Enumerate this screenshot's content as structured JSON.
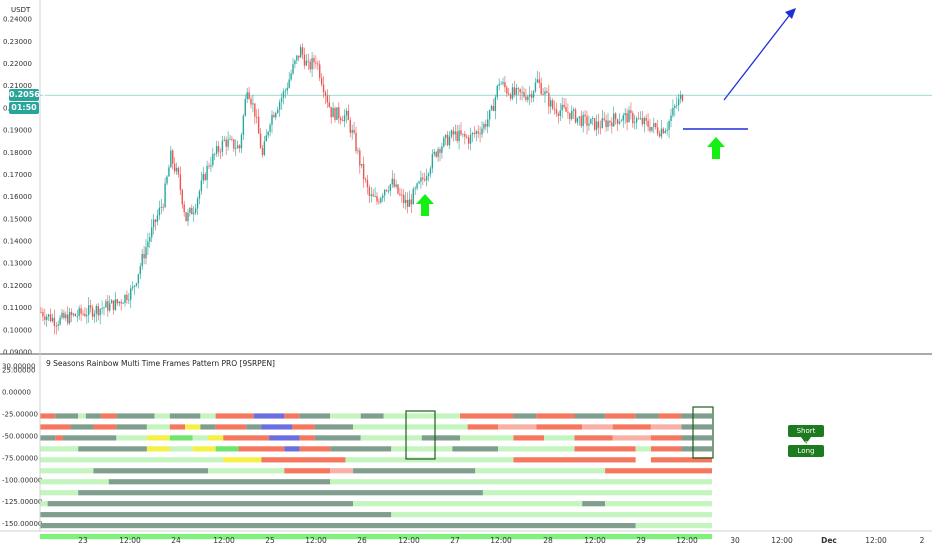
{
  "chart_data": [
    {
      "type": "candlestick",
      "unit_label": "USDT",
      "y_ticks": [
        "0.24000",
        "0.23000",
        "0.22000",
        "0.21000",
        "0.20000",
        "0.19000",
        "0.18000",
        "0.17000",
        "0.16000",
        "0.15000",
        "0.14000",
        "0.13000",
        "0.12000",
        "0.11000",
        "0.10000",
        "0.09000"
      ],
      "ylim": [
        0.09,
        0.245
      ],
      "last_price": "0.20565",
      "countdown": "01:50",
      "price_line": 0.2057,
      "horizontal_line": 0.1905,
      "close_path": [
        [
          0,
          0.108
        ],
        [
          4,
          0.104
        ],
        [
          8,
          0.106
        ],
        [
          12,
          0.108
        ],
        [
          16,
          0.11
        ],
        [
          20,
          0.112
        ],
        [
          24,
          0.118
        ],
        [
          28,
          0.14
        ],
        [
          32,
          0.158
        ],
        [
          34,
          0.178
        ],
        [
          36,
          0.168
        ],
        [
          38,
          0.15
        ],
        [
          40,
          0.155
        ],
        [
          44,
          0.175
        ],
        [
          48,
          0.185
        ],
        [
          52,
          0.182
        ],
        [
          54,
          0.21
        ],
        [
          56,
          0.198
        ],
        [
          58,
          0.178
        ],
        [
          60,
          0.195
        ],
        [
          64,
          0.208
        ],
        [
          66,
          0.218
        ],
        [
          68,
          0.226
        ],
        [
          70,
          0.218
        ],
        [
          72,
          0.222
        ],
        [
          74,
          0.21
        ],
        [
          76,
          0.198
        ],
        [
          80,
          0.196
        ],
        [
          82,
          0.186
        ],
        [
          84,
          0.172
        ],
        [
          86,
          0.16
        ],
        [
          88,
          0.158
        ],
        [
          90,
          0.164
        ],
        [
          92,
          0.166
        ],
        [
          94,
          0.16
        ],
        [
          96,
          0.156
        ],
        [
          98,
          0.162
        ],
        [
          100,
          0.168
        ],
        [
          104,
          0.182
        ],
        [
          108,
          0.188
        ],
        [
          112,
          0.186
        ],
        [
          116,
          0.192
        ],
        [
          118,
          0.198
        ],
        [
          120,
          0.212
        ],
        [
          122,
          0.208
        ],
        [
          124,
          0.206
        ],
        [
          128,
          0.206
        ],
        [
          130,
          0.212
        ],
        [
          132,
          0.206
        ],
        [
          134,
          0.2
        ],
        [
          138,
          0.198
        ],
        [
          142,
          0.194
        ],
        [
          146,
          0.192
        ],
        [
          150,
          0.195
        ],
        [
          154,
          0.196
        ],
        [
          158,
          0.193
        ],
        [
          162,
          0.19
        ],
        [
          164,
          0.192
        ],
        [
          166,
          0.2
        ],
        [
          168,
          0.2057
        ]
      ],
      "annotations": [
        "up-arrow",
        "up-arrow",
        "trend-arrow"
      ]
    },
    {
      "type": "heatmap",
      "title": "9 Seasons Rainbow Multi Time Frames Pattern PRO [9SRPEN]",
      "y_ticks": [
        "30.00000",
        "25.00000",
        "0.00000",
        "-25.00000",
        "-50.00000",
        "-75.00000",
        "-100.00000",
        "-125.00000",
        "-150.00000"
      ],
      "ylim": [
        -155,
        32
      ],
      "legend": [
        "Short Term",
        "Long Term"
      ],
      "rows": [
        {
          "y": -25,
          "segments": [
            [
              "salmon",
              0,
              4
            ],
            [
              "gray",
              4,
              10
            ],
            [
              "lightgreen",
              10,
              12
            ],
            [
              "gray",
              12,
              16
            ],
            [
              "salmon",
              16,
              20
            ],
            [
              "gray",
              20,
              30
            ],
            [
              "lightgreen",
              30,
              34
            ],
            [
              "gray",
              34,
              42
            ],
            [
              "lightgreen",
              42,
              46
            ],
            [
              "salmon",
              46,
              56
            ],
            [
              "blue",
              56,
              64
            ],
            [
              "salmon",
              64,
              68
            ],
            [
              "gray",
              68,
              76
            ],
            [
              "lightgreen",
              76,
              84
            ],
            [
              "gray",
              84,
              90
            ],
            [
              "lightgreen",
              90,
              100
            ],
            [
              "lightgreen",
              100,
              110
            ],
            [
              "salmon",
              110,
              124
            ],
            [
              "gray",
              124,
              130
            ],
            [
              "salmon",
              130,
              140
            ],
            [
              "gray",
              140,
              148
            ],
            [
              "salmon",
              148,
              156
            ],
            [
              "gray",
              156,
              162
            ],
            [
              "salmon",
              162,
              168
            ],
            [
              "gray",
              168,
              176
            ]
          ]
        },
        {
          "y": -37.5,
          "segments": [
            [
              "salmon",
              0,
              8
            ],
            [
              "gray",
              8,
              14
            ],
            [
              "salmon",
              14,
              20
            ],
            [
              "gray",
              20,
              28
            ],
            [
              "lightgreen",
              28,
              34
            ],
            [
              "salmon",
              34,
              38
            ],
            [
              "yellow",
              38,
              42
            ],
            [
              "gray",
              42,
              46
            ],
            [
              "salmon",
              46,
              54
            ],
            [
              "gray",
              54,
              58
            ],
            [
              "blue",
              58,
              66
            ],
            [
              "salmon",
              66,
              72
            ],
            [
              "gray",
              72,
              82
            ],
            [
              "lightgreen",
              82,
              96
            ],
            [
              "lightgreen",
              96,
              112
            ],
            [
              "salmon",
              112,
              120
            ],
            [
              "pink",
              120,
              130
            ],
            [
              "salmon",
              130,
              142
            ],
            [
              "pink",
              142,
              150
            ],
            [
              "salmon",
              150,
              160
            ],
            [
              "pink",
              160,
              168
            ],
            [
              "gray",
              168,
              176
            ]
          ]
        },
        {
          "y": -50,
          "segments": [
            [
              "gray",
              0,
              4
            ],
            [
              "salmon",
              4,
              6
            ],
            [
              "gray",
              6,
              20
            ],
            [
              "lightgreen",
              20,
              28
            ],
            [
              "yellow",
              28,
              34
            ],
            [
              "green",
              34,
              40
            ],
            [
              "lightgreen",
              40,
              44
            ],
            [
              "yellow",
              44,
              48
            ],
            [
              "salmon",
              48,
              60
            ],
            [
              "blue",
              60,
              68
            ],
            [
              "salmon",
              68,
              72
            ],
            [
              "gray",
              72,
              84
            ],
            [
              "lightgreen",
              84,
              100
            ],
            [
              "gray",
              100,
              110
            ],
            [
              "lightgreen",
              110,
              124
            ],
            [
              "salmon",
              124,
              132
            ],
            [
              "lightgreen",
              132,
              140
            ],
            [
              "salmon",
              140,
              150
            ],
            [
              "pink",
              150,
              160
            ],
            [
              "salmon",
              160,
              168
            ],
            [
              "gray",
              168,
              176
            ]
          ]
        },
        {
          "y": -62.5,
          "segments": [
            [
              "lightgreen",
              0,
              10
            ],
            [
              "gray",
              10,
              28
            ],
            [
              "yellow",
              28,
              34
            ],
            [
              "lightgreen",
              34,
              40
            ],
            [
              "yellow",
              40,
              46
            ],
            [
              "green",
              46,
              52
            ],
            [
              "salmon",
              52,
              64
            ],
            [
              "blue",
              64,
              68
            ],
            [
              "salmon",
              68,
              76
            ],
            [
              "gray",
              76,
              92
            ],
            [
              "lightgreen",
              92,
              108
            ],
            [
              "gray",
              108,
              120
            ],
            [
              "lightgreen",
              120,
              140
            ],
            [
              "salmon",
              140,
              156
            ],
            [
              "lightgreen",
              156,
              160
            ],
            [
              "salmon",
              160,
              168
            ],
            [
              "gray",
              168,
              176
            ]
          ]
        },
        {
          "y": -75,
          "segments": [
            [
              "lightgreen",
              0,
              10
            ],
            [
              "lightgreen",
              10,
              48
            ],
            [
              "yellow",
              48,
              58
            ],
            [
              "salmon",
              58,
              80
            ],
            [
              "lightgreen",
              80,
              124
            ],
            [
              "salmon",
              124,
              156
            ],
            [
              "salmon",
              160,
              176
            ]
          ]
        },
        {
          "y": -87.5,
          "segments": [
            [
              "lightgreen",
              0,
              14
            ],
            [
              "gray",
              14,
              44
            ],
            [
              "lightgreen",
              44,
              64
            ],
            [
              "salmon",
              64,
              76
            ],
            [
              "pink",
              76,
              82
            ],
            [
              "gray",
              82,
              114
            ],
            [
              "lightgreen",
              114,
              148
            ],
            [
              "salmon",
              148,
              176
            ]
          ]
        },
        {
          "y": -100,
          "segments": [
            [
              "lightgreen",
              0,
              18
            ],
            [
              "gray",
              18,
              76
            ],
            [
              "lightgreen",
              76,
              176
            ]
          ]
        },
        {
          "y": -112.5,
          "segments": [
            [
              "lightgreen",
              0,
              10
            ],
            [
              "gray",
              10,
              116
            ],
            [
              "lightgreen",
              116,
              176
            ]
          ]
        },
        {
          "y": -125,
          "segments": [
            [
              "lightgreen",
              0,
              2
            ],
            [
              "gray",
              2,
              82
            ],
            [
              "lightgreen",
              82,
              142
            ],
            [
              "gray",
              142,
              148
            ],
            [
              "lightgreen",
              148,
              176
            ]
          ]
        },
        {
          "y": -137.5,
          "segments": [
            [
              "gray",
              0,
              92
            ],
            [
              "lightgreen",
              92,
              176
            ]
          ]
        },
        {
          "y": -150,
          "segments": [
            [
              "gray",
              0,
              156
            ],
            [
              "lightgreen",
              156,
              176
            ]
          ]
        },
        {
          "y": -162.5,
          "segments": [
            [
              "brightgreen",
              0,
              176
            ]
          ]
        }
      ]
    }
  ],
  "x_ticks": [
    "23",
    "12:00",
    "24",
    "12:00",
    "25",
    "12:00",
    "26",
    "12:00",
    "27",
    "12:00",
    "28",
    "12:00",
    "29",
    "12:00",
    "30",
    "12:00",
    "Dec",
    "12:00",
    "2"
  ],
  "colors": {
    "up": "#26a69a",
    "down": "#ef5350",
    "accent": "#26a69a",
    "trend": "#1e2fd8",
    "green_arrow": "#14f014",
    "gray": "#7f9e8e",
    "lightgreen": "#c4f5bf",
    "salmon": "#f4775e",
    "pink": "#f7b1a5",
    "yellow": "#f5f045",
    "green": "#6ee66e",
    "blue": "#6b6ee0",
    "brightgreen": "#7ef27a"
  }
}
